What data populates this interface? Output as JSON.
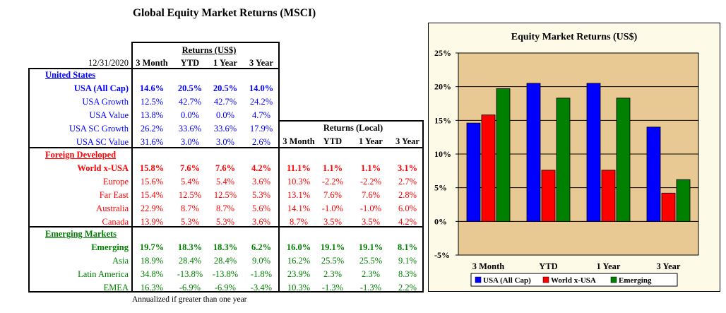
{
  "title": "Global Equity Market Returns (MSCI)",
  "date": "12/31/2020",
  "returns_usd_header": "Returns (US$)",
  "returns_local_header": "Returns (Local)",
  "columns": [
    "3 Month",
    "YTD",
    "1 Year",
    "3 Year"
  ],
  "footnote": "Annualized if greater than one year",
  "sections": [
    {
      "name": "United States",
      "color": "#0000ff",
      "rows": [
        {
          "label": "USA (All Cap)",
          "bold": true,
          "usd": [
            "14.6%",
            "20.5%",
            "20.5%",
            "14.0%"
          ]
        },
        {
          "label": "USA Growth",
          "bold": false,
          "usd": [
            "12.5%",
            "42.7%",
            "42.7%",
            "24.2%"
          ]
        },
        {
          "label": "USA Value",
          "bold": false,
          "usd": [
            "13.8%",
            "0.0%",
            "0.0%",
            "4.7%"
          ]
        },
        {
          "label": "USA SC Growth",
          "bold": false,
          "usd": [
            "26.2%",
            "33.6%",
            "33.6%",
            "17.9%"
          ]
        },
        {
          "label": "USA SC Value",
          "bold": false,
          "usd": [
            "31.6%",
            "3.0%",
            "3.0%",
            "2.6%"
          ]
        }
      ]
    },
    {
      "name": "Foreign Developed",
      "color": "#ff0000",
      "rows": [
        {
          "label": "World x-USA",
          "bold": true,
          "usd": [
            "15.8%",
            "7.6%",
            "7.6%",
            "4.2%"
          ],
          "local": [
            "11.1%",
            "1.1%",
            "1.1%",
            "3.1%"
          ]
        },
        {
          "label": "Europe",
          "bold": false,
          "usd": [
            "15.6%",
            "5.4%",
            "5.4%",
            "3.6%"
          ],
          "local": [
            "10.3%",
            "-2.2%",
            "-2.2%",
            "2.7%"
          ]
        },
        {
          "label": "Far East",
          "bold": false,
          "usd": [
            "15.4%",
            "12.5%",
            "12.5%",
            "5.3%"
          ],
          "local": [
            "13.1%",
            "7.6%",
            "7.6%",
            "2.8%"
          ]
        },
        {
          "label": "Australia",
          "bold": false,
          "usd": [
            "22.9%",
            "8.7%",
            "8.7%",
            "5.6%"
          ],
          "local": [
            "14.1%",
            "-1.0%",
            "-1.0%",
            "6.0%"
          ]
        },
        {
          "label": "Canada",
          "bold": false,
          "usd": [
            "13.9%",
            "5.3%",
            "5.3%",
            "3.6%"
          ],
          "local": [
            "8.7%",
            "3.5%",
            "3.5%",
            "4.2%"
          ]
        }
      ]
    },
    {
      "name": "Emerging Markets",
      "color": "#008000",
      "rows": [
        {
          "label": "Emerging",
          "bold": true,
          "usd": [
            "19.7%",
            "18.3%",
            "18.3%",
            "6.2%"
          ],
          "local": [
            "16.0%",
            "19.1%",
            "19.1%",
            "8.1%"
          ]
        },
        {
          "label": "Asia",
          "bold": false,
          "usd": [
            "18.9%",
            "28.4%",
            "28.4%",
            "9.0%"
          ],
          "local": [
            "16.2%",
            "25.5%",
            "25.5%",
            "9.1%"
          ]
        },
        {
          "label": "Latin America",
          "bold": false,
          "usd": [
            "34.8%",
            "-13.8%",
            "-13.8%",
            "-1.8%"
          ],
          "local": [
            "23.9%",
            "2.3%",
            "2.3%",
            "8.3%"
          ]
        },
        {
          "label": "EMEA",
          "bold": false,
          "usd": [
            "16.3%",
            "-6.9%",
            "-6.9%",
            "-3.4%"
          ],
          "local": [
            "10.3%",
            "-1.3%",
            "-1.3%",
            "2.2%"
          ]
        }
      ]
    }
  ],
  "chart_data": {
    "type": "bar",
    "title": "Equity Market Returns (US$)",
    "categories": [
      "3 Month",
      "YTD",
      "1 Year",
      "3 Year"
    ],
    "series": [
      {
        "name": "USA (All Cap)",
        "color": "#0000ff",
        "values": [
          14.6,
          20.5,
          20.5,
          14.0
        ]
      },
      {
        "name": "World x-USA",
        "color": "#ff0000",
        "values": [
          15.8,
          7.6,
          7.6,
          4.2
        ]
      },
      {
        "name": "Emerging",
        "color": "#008000",
        "values": [
          19.7,
          18.3,
          18.3,
          6.2
        ]
      }
    ],
    "ylim": [
      -5,
      25
    ],
    "yticks": [
      -5,
      0,
      5,
      10,
      15,
      20,
      25
    ],
    "ytick_labels": [
      "-5%",
      "0%",
      "5%",
      "10%",
      "15%",
      "20%",
      "25%"
    ],
    "plot_background": "#e8c893",
    "grid": true,
    "legend": "bottom"
  }
}
